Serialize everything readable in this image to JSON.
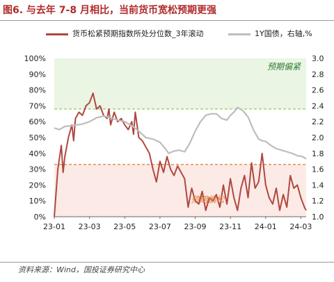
{
  "title": "图6. 与去年 7-8 月相比，当前货币宽松预期更强",
  "source": "资料来源：Wind，国投证券研究中心",
  "colors": {
    "series_left": "#b0473f",
    "series_right": "#bdbdbd",
    "upper_zone_fill": "#eaf5e4",
    "upper_zone_line": "#8bc34a",
    "lower_zone_fill": "#fbeae6",
    "lower_zone_line": "#e07a3a",
    "upper_zone_label": "#2e7d32",
    "lower_zone_label": "#e07a3a",
    "title": "#b02a2a"
  },
  "chart_data": {
    "type": "line",
    "legend": [
      "货币松紧预期指数所处分位数_3年滚动",
      "1Y国债，右轴,%"
    ],
    "legend_position": "top",
    "x_tick_labels": [
      "23-01",
      "23-03",
      "23-05",
      "23-07",
      "23-09",
      "23-11",
      "24-01",
      "24-03"
    ],
    "y_left": {
      "min": 0,
      "max": 100,
      "ticks": [
        "0%",
        "10%",
        "20%",
        "30%",
        "40%",
        "50%",
        "60%",
        "70%",
        "80%",
        "90%",
        "100%"
      ]
    },
    "y_right": {
      "min": 1.0,
      "max": 3.0,
      "ticks": [
        "1.0",
        "1.2",
        "1.4",
        "1.6",
        "1.8",
        "2.0",
        "2.2",
        "2.4",
        "2.6",
        "2.8",
        "3.0"
      ]
    },
    "zones": [
      {
        "label": "预期偏紧",
        "from": 68,
        "to": 100,
        "boundary": 68
      },
      {
        "label": "预期偏松",
        "from": 0,
        "to": 33,
        "boundary": 33
      }
    ],
    "series": [
      {
        "name": "货币松紧预期指数所处分位数_3年滚动",
        "axis": "left",
        "x": [
          0,
          0.2,
          0.4,
          0.5,
          0.6,
          0.8,
          1.0,
          1.1,
          1.2,
          1.4,
          1.6,
          1.8,
          2.0,
          2.2,
          2.4,
          2.6,
          2.8,
          3.0,
          3.1,
          3.2,
          3.4,
          3.6,
          3.8,
          4.0,
          4.2,
          4.4,
          4.5,
          4.6,
          4.8,
          5.0,
          5.2,
          5.4,
          5.6,
          5.8,
          6.0,
          6.2,
          6.4,
          6.6,
          6.8,
          7.0,
          7.2,
          7.4,
          7.6,
          7.8,
          8.0,
          8.2,
          8.4,
          8.6,
          8.8,
          9.0,
          9.2,
          9.4,
          9.6,
          9.8,
          10.0,
          10.2,
          10.4,
          10.6,
          10.8,
          11.0,
          11.2,
          11.4,
          11.6,
          11.8,
          12.0,
          12.2,
          12.4,
          12.6,
          12.8,
          13.0,
          13.2,
          13.4,
          13.6,
          13.8,
          14.0,
          14.2,
          14.3
        ],
        "values": [
          0,
          30,
          45,
          28,
          38,
          50,
          58,
          48,
          62,
          66,
          64,
          70,
          72,
          78,
          68,
          70,
          64,
          62,
          68,
          58,
          66,
          60,
          62,
          58,
          55,
          60,
          52,
          66,
          50,
          48,
          44,
          40,
          30,
          22,
          35,
          28,
          38,
          30,
          26,
          32,
          28,
          24,
          6,
          18,
          10,
          8,
          16,
          4,
          12,
          10,
          14,
          6,
          20,
          8,
          24,
          12,
          4,
          18,
          26,
          12,
          34,
          18,
          22,
          40,
          20,
          12,
          8,
          18,
          4,
          14,
          6,
          26,
          18,
          20,
          12,
          6,
          4
        ],
        "values_detail": "daily, read as visual approximation"
      },
      {
        "name": "1Y国债，右轴,%",
        "axis": "right",
        "x": [
          0,
          0.3,
          0.6,
          1.0,
          1.3,
          1.6,
          2.0,
          2.4,
          2.8,
          3.2,
          3.6,
          4.0,
          4.4,
          4.8,
          5.2,
          5.6,
          6.0,
          6.3,
          6.5,
          6.8,
          7.1,
          7.4,
          7.7,
          8.0,
          8.3,
          8.6,
          8.9,
          9.2,
          9.5,
          9.8,
          10.0,
          10.2,
          10.4,
          10.7,
          11.0,
          11.3,
          11.6,
          11.8,
          12.0,
          12.3,
          12.6,
          12.9,
          13.2,
          13.5,
          13.8,
          14.1,
          14.3
        ],
        "values": [
          2.12,
          2.1,
          2.14,
          2.15,
          2.16,
          2.17,
          2.2,
          2.25,
          2.27,
          2.25,
          2.22,
          2.2,
          2.15,
          2.08,
          2.0,
          1.98,
          1.94,
          1.86,
          1.8,
          1.83,
          1.84,
          1.82,
          1.93,
          2.08,
          2.2,
          2.28,
          2.3,
          2.3,
          2.24,
          2.22,
          2.28,
          2.32,
          2.38,
          2.34,
          2.26,
          2.1,
          1.98,
          1.96,
          1.95,
          1.9,
          1.86,
          1.84,
          1.82,
          1.8,
          1.77,
          1.76,
          1.73
        ]
      }
    ]
  }
}
